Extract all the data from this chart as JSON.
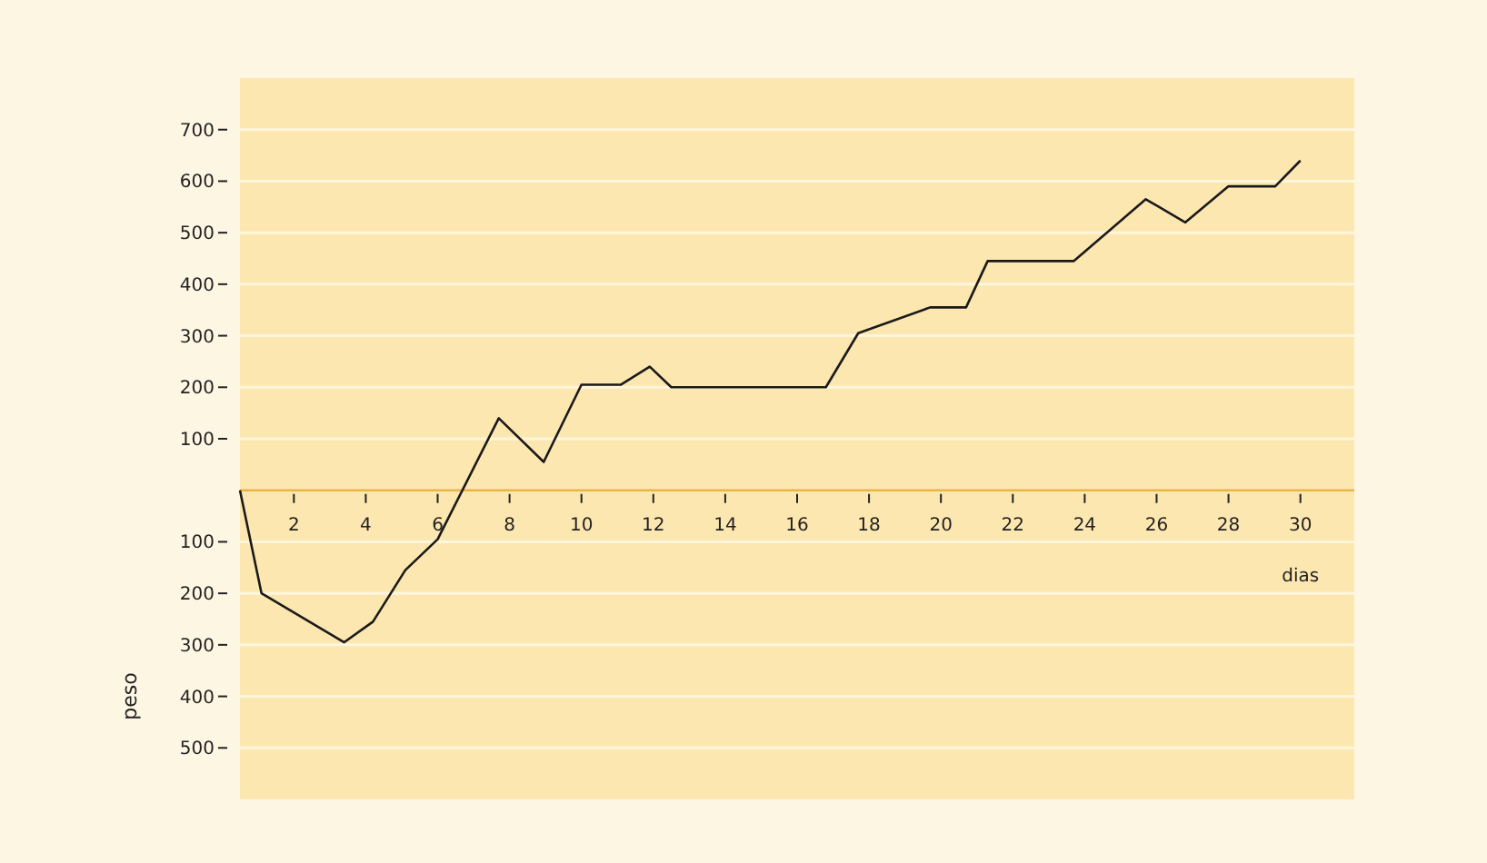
{
  "chart_data": {
    "type": "line",
    "xlabel": "dias",
    "ylabel": "peso",
    "x": [
      0.5,
      1.1,
      3.4,
      4.2,
      5.1,
      6,
      7.7,
      8.95,
      10,
      11.1,
      11.9,
      12.5,
      16.8,
      17.7,
      19.7,
      20.7,
      21.3,
      23.7,
      25.7,
      26.8,
      28,
      29.3,
      30
    ],
    "series": [
      {
        "color": "#1a1a1a",
        "values": [
          0,
          -200,
          -295,
          -255,
          -155,
          -95,
          140,
          55,
          205,
          205,
          240,
          200,
          200,
          305,
          355,
          355,
          445,
          445,
          565,
          520,
          590,
          590,
          640
        ]
      }
    ],
    "xlim": [
      0.5,
      31.5
    ],
    "xticks": [
      2,
      4,
      6,
      8,
      10,
      12,
      14,
      16,
      18,
      20,
      22,
      24,
      26,
      28,
      30
    ],
    "ylim": [
      -600,
      800
    ],
    "yticks": [
      {
        "value": -500,
        "label": "500"
      },
      {
        "value": -400,
        "label": "400"
      },
      {
        "value": -300,
        "label": "300"
      },
      {
        "value": -200,
        "label": "200"
      },
      {
        "value": -100,
        "label": "100"
      },
      100,
      200,
      300,
      400,
      500,
      600,
      700
    ],
    "grid": "y",
    "marker": "none",
    "line_style": "solid"
  }
}
